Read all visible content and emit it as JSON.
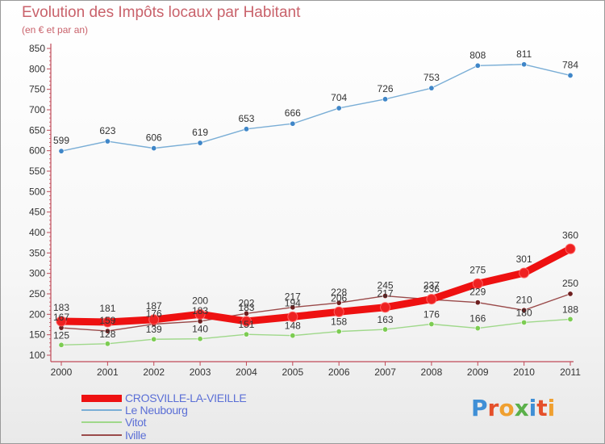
{
  "title": "Evolution des Impôts locaux par Habitant",
  "subtitle": "(en € et par an)",
  "brand": {
    "text": "Proxiti",
    "letter_colors": [
      "#3f8fd6",
      "#e5502b",
      "#f0a030",
      "#5bb04a",
      "#3f8fd6",
      "#e5502b",
      "#f0a030"
    ]
  },
  "chart_data": {
    "type": "line",
    "title": "Evolution des Impôts locaux par Habitant",
    "subtitle": "(en € et par an)",
    "xlabel": "",
    "ylabel": "",
    "x": [
      "2000",
      "2001",
      "2002",
      "2003",
      "2004",
      "2005",
      "2006",
      "2007",
      "2008",
      "2009",
      "2010",
      "2011"
    ],
    "ylim": [
      100,
      850
    ],
    "yticks": [
      100,
      150,
      200,
      250,
      300,
      350,
      400,
      450,
      500,
      550,
      600,
      650,
      700,
      750,
      800,
      850
    ],
    "grid": false,
    "legend_position": "bottom-left",
    "series": [
      {
        "name": "CROSVILLE-LA-VIEILLE",
        "color": "#ee1111",
        "marker_color": "#ee2222",
        "values": [
          183,
          181,
          187,
          200,
          183,
          194,
          206,
          217,
          237,
          275,
          301,
          360
        ],
        "labels": [
          "183",
          "181",
          "187",
          "200",
          "183",
          "194",
          "206",
          "217",
          "237",
          "275",
          "301",
          "360"
        ],
        "style": "thick"
      },
      {
        "name": "Le Neubourg",
        "color": "#7aaed6",
        "marker_color": "#3f86c8",
        "values": [
          599,
          623,
          606,
          619,
          653,
          666,
          704,
          726,
          753,
          808,
          811,
          784
        ],
        "labels": [
          "599",
          "623",
          "606",
          "619",
          "653",
          "666",
          "704",
          "726",
          "753",
          "808",
          "811",
          "784"
        ],
        "style": "thin"
      },
      {
        "name": "Vitot",
        "color": "#9fd88a",
        "marker_color": "#7ccc52",
        "values": [
          125,
          128,
          139,
          140,
          151,
          148,
          158,
          163,
          176,
          166,
          180,
          188
        ],
        "labels": [
          "125",
          "128",
          "139",
          "140",
          "151",
          "148",
          "158",
          "163",
          "176",
          "166",
          "180",
          "188"
        ],
        "style": "thin"
      },
      {
        "name": "Iville",
        "color": "#9a4a4a",
        "marker_color": "#6e1f1f",
        "values": [
          167,
          159,
          176,
          183,
          202,
          217,
          228,
          245,
          236,
          229,
          210,
          250
        ],
        "labels": [
          "167",
          "159",
          "176",
          "183",
          "202",
          "217",
          "228",
          "245",
          "236",
          "229",
          "210",
          "250"
        ],
        "style": "thin"
      }
    ]
  }
}
